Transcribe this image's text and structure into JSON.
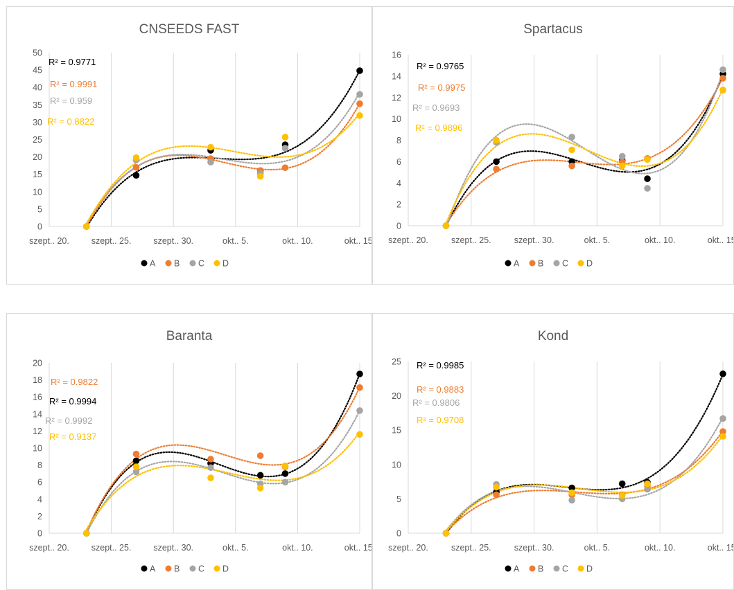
{
  "legend_colors": {
    "A": "#000000",
    "B": "#ed7d31",
    "C": "#a5a5a5",
    "D": "#ffc000"
  },
  "chart_data": [
    {
      "type": "scatter",
      "title": "CNSEEDS FAST",
      "trendline": "polynomial (dotted)",
      "x_ticks": [
        "szept.. 20.",
        "szept.. 25.",
        "szept.. 30.",
        "okt.. 5.",
        "okt.. 10.",
        "okt.. 15."
      ],
      "x_tick_days": [
        20,
        25,
        30,
        35,
        40,
        45
      ],
      "x_days": [
        23,
        27,
        33,
        37,
        39,
        45
      ],
      "xlim": [
        20,
        45
      ],
      "ylim": [
        0,
        50
      ],
      "y_ticks": [
        0,
        5,
        10,
        15,
        20,
        25,
        30,
        35,
        40,
        45,
        50
      ],
      "grid": "vertical",
      "legend_position": "bottom",
      "series": [
        {
          "name": "A",
          "color": "#000000",
          "values": [
            0,
            14.7,
            21.9,
            16.0,
            23.5,
            44.8
          ],
          "r2": "R² = 0.9771"
        },
        {
          "name": "B",
          "color": "#ed7d31",
          "values": [
            0,
            17.0,
            19.5,
            16.1,
            16.9,
            35.3
          ],
          "r2": "R² = 0.9991"
        },
        {
          "name": "C",
          "color": "#a5a5a5",
          "values": [
            0,
            19.1,
            18.5,
            15.2,
            22.5,
            38.0
          ],
          "r2": "R² = 0.959"
        },
        {
          "name": "D",
          "color": "#ffc000",
          "values": [
            0,
            19.8,
            22.8,
            14.4,
            25.7,
            31.9
          ],
          "r2": "R² = 0.8822"
        }
      ]
    },
    {
      "type": "scatter",
      "title": "Spartacus",
      "trendline": "polynomial (dotted)",
      "x_ticks": [
        "szept.. 20.",
        "szept.. 25.",
        "szept.. 30.",
        "okt.. 5.",
        "okt.. 10.",
        "okt.. 15."
      ],
      "x_tick_days": [
        20,
        25,
        30,
        35,
        40,
        45
      ],
      "x_days": [
        23,
        27,
        33,
        37,
        39,
        45
      ],
      "xlim": [
        20,
        45
      ],
      "ylim": [
        0,
        16
      ],
      "y_ticks": [
        0,
        2,
        4,
        6,
        8,
        10,
        12,
        14,
        16
      ],
      "grid": "vertical",
      "legend_position": "bottom",
      "series": [
        {
          "name": "A",
          "color": "#000000",
          "values": [
            0,
            6.0,
            6.0,
            6.1,
            4.4,
            14.2
          ],
          "r2": "R² = 0.9765"
        },
        {
          "name": "B",
          "color": "#ed7d31",
          "values": [
            0,
            5.3,
            5.6,
            6.0,
            6.3,
            13.8
          ],
          "r2": "R² = 0.9975"
        },
        {
          "name": "C",
          "color": "#a5a5a5",
          "values": [
            0,
            7.8,
            8.3,
            6.5,
            3.5,
            14.6
          ],
          "r2": "R² = 0.9693"
        },
        {
          "name": "D",
          "color": "#ffc000",
          "values": [
            0,
            8.0,
            7.1,
            5.6,
            6.2,
            12.7
          ],
          "r2": "R² = 0.9896"
        }
      ]
    },
    {
      "type": "scatter",
      "title": "Baranta",
      "trendline": "polynomial (dotted)",
      "x_ticks": [
        "szept.. 20.",
        "szept.. 25.",
        "szept.. 30.",
        "okt.. 5.",
        "okt.. 10.",
        "okt.. 15."
      ],
      "x_tick_days": [
        20,
        25,
        30,
        35,
        40,
        45
      ],
      "x_days": [
        23,
        27,
        33,
        37,
        39,
        45
      ],
      "xlim": [
        20,
        45
      ],
      "ylim": [
        0,
        20
      ],
      "y_ticks": [
        0,
        2,
        4,
        6,
        8,
        10,
        12,
        14,
        16,
        18,
        20
      ],
      "grid": "vertical",
      "legend_position": "bottom",
      "series": [
        {
          "name": "A",
          "color": "#000000",
          "values": [
            0,
            8.5,
            8.2,
            6.8,
            7.0,
            18.7
          ],
          "r2": "R² = 0.9994"
        },
        {
          "name": "B",
          "color": "#ed7d31",
          "values": [
            0,
            9.3,
            8.7,
            9.1,
            7.8,
            17.1
          ],
          "r2": "R² = 0.9822"
        },
        {
          "name": "C",
          "color": "#a5a5a5",
          "values": [
            0,
            7.2,
            7.7,
            5.8,
            6.0,
            14.4
          ],
          "r2": "R² = 0.9992"
        },
        {
          "name": "D",
          "color": "#ffc000",
          "values": [
            0,
            7.8,
            6.5,
            5.3,
            7.9,
            11.6
          ],
          "r2": "R² = 0.9137"
        }
      ]
    },
    {
      "type": "scatter",
      "title": "Kond",
      "trendline": "polynomial (dotted)",
      "x_ticks": [
        "szept.. 20.",
        "szept.. 25.",
        "szept.. 30.",
        "okt.. 5.",
        "okt.. 10.",
        "okt.. 15."
      ],
      "x_tick_days": [
        20,
        25,
        30,
        35,
        40,
        45
      ],
      "x_days": [
        23,
        27,
        33,
        37,
        39,
        45
      ],
      "xlim": [
        20,
        45
      ],
      "ylim": [
        0,
        25
      ],
      "y_ticks": [
        0,
        5,
        10,
        15,
        20,
        25
      ],
      "grid": "vertical",
      "legend_position": "bottom",
      "series": [
        {
          "name": "A",
          "color": "#000000",
          "values": [
            0,
            6.0,
            6.6,
            7.2,
            7.4,
            23.2
          ],
          "r2": "R² = 0.9985"
        },
        {
          "name": "B",
          "color": "#ed7d31",
          "values": [
            0,
            5.6,
            5.6,
            5.6,
            6.9,
            14.8
          ],
          "r2": "R² = 0.9883"
        },
        {
          "name": "C",
          "color": "#a5a5a5",
          "values": [
            0,
            7.1,
            4.8,
            5.0,
            6.4,
            16.7
          ],
          "r2": "R² = 0.9806"
        },
        {
          "name": "D",
          "color": "#ffc000",
          "values": [
            0,
            6.7,
            5.9,
            5.5,
            7.2,
            14.1
          ],
          "r2": "R² = 0.9708"
        }
      ]
    }
  ]
}
